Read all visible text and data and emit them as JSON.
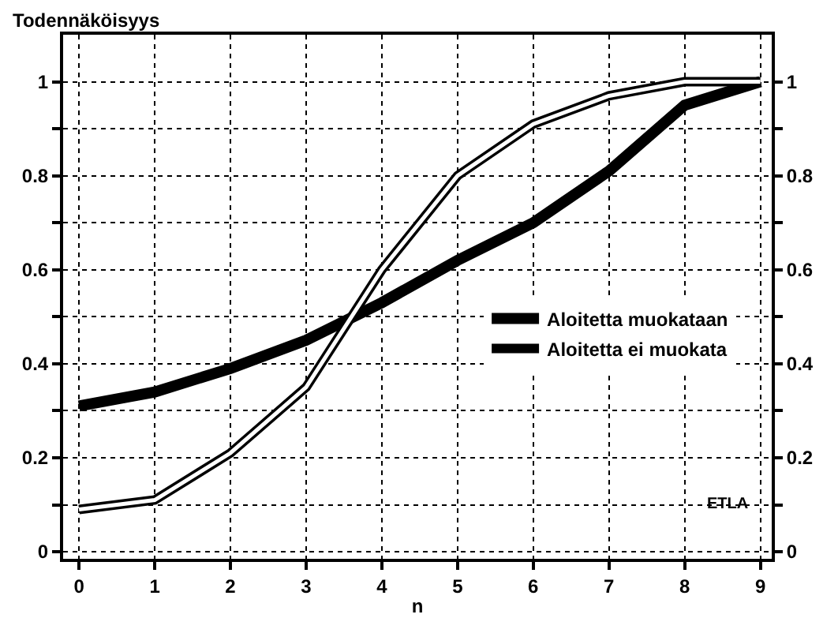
{
  "chart_data": {
    "type": "line",
    "ylabel": "Todennäköisyys",
    "xlabel": "n",
    "x": [
      0,
      1,
      2,
      3,
      4,
      5,
      6,
      7,
      8,
      9
    ],
    "series": [
      {
        "name": "Aloitetta muokataan",
        "color": "#000000",
        "values": [
          0.31,
          0.34,
          0.39,
          0.45,
          0.53,
          0.62,
          0.7,
          0.81,
          0.95,
          1.0
        ]
      },
      {
        "name": "Aloitetta ei muokata",
        "color": "#000000",
        "values": [
          0.09,
          0.11,
          0.21,
          0.35,
          0.6,
          0.8,
          0.91,
          0.97,
          1.0,
          1.0
        ]
      }
    ],
    "xlim": [
      -0.21,
      9.15
    ],
    "xticks": [
      0,
      1,
      2,
      3,
      4,
      5,
      6,
      7,
      8,
      9
    ],
    "ylim": [
      -0.015,
      1.1
    ],
    "yticks": [
      0,
      {
        "value": 0.1,
        "label": null
      },
      0.2,
      {
        "value": 0.3,
        "label": null
      },
      0.4,
      {
        "value": 0.5,
        "label": null
      },
      0.6,
      {
        "value": 0.7,
        "label": null
      },
      0.8,
      {
        "value": 0.9,
        "label": null
      },
      1
    ],
    "y2lim": [
      -0.015,
      1.1
    ],
    "y2ticks": [
      0,
      {
        "value": 0.1,
        "label": null
      },
      0.2,
      {
        "value": 0.3,
        "label": null
      },
      0.4,
      {
        "value": 0.5,
        "label": null
      },
      0.6,
      {
        "value": 0.7,
        "label": null
      },
      0.8,
      {
        "value": 0.9,
        "label": null
      },
      1
    ],
    "grid": true,
    "legend": "center right",
    "marker": "none",
    "line_style": "solid",
    "annotations": [
      "ETLA"
    ]
  }
}
